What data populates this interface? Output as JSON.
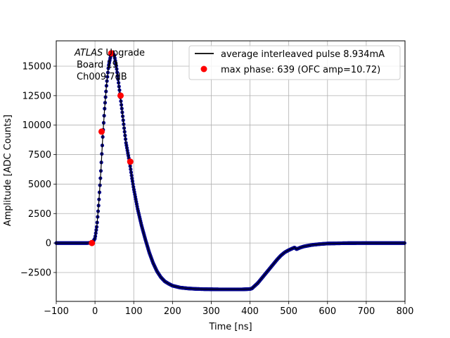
{
  "chart_data": {
    "type": "line",
    "xlabel": "Time [ns]",
    "ylabel": "Amplitude [ADC Counts]",
    "xlim": [
      -100,
      800
    ],
    "ylim": [
      -4950,
      17150
    ],
    "xticks": [
      -100,
      0,
      100,
      200,
      300,
      400,
      500,
      600,
      700,
      800
    ],
    "xtick_labels": [
      "−100",
      "0",
      "100",
      "200",
      "300",
      "400",
      "500",
      "600",
      "700",
      "800"
    ],
    "yticks": [
      -2500,
      0,
      2500,
      5000,
      7500,
      10000,
      12500,
      15000
    ],
    "ytick_labels": [
      "−2500",
      "0",
      "2500",
      "5000",
      "7500",
      "10000",
      "12500",
      "15000"
    ],
    "grid": true,
    "legend_position": "top-right",
    "annotation": {
      "line1_italic": "ATLAS",
      "line1_rest": " Upgrade",
      "line2": "Board 19",
      "line3": "Ch009 7dB"
    },
    "series": [
      {
        "name": "average interleaved pulse 8.934mA",
        "style": "line",
        "color": "#000000",
        "marker_color": "#00008b",
        "x": [
          -100,
          -20,
          -10,
          -5,
          0,
          5,
          10,
          15,
          20,
          25,
          30,
          35,
          40,
          45,
          50,
          55,
          60,
          65,
          70,
          75,
          80,
          85,
          90,
          95,
          100,
          110,
          120,
          130,
          140,
          150,
          160,
          170,
          180,
          190,
          200,
          220,
          240,
          260,
          280,
          300,
          320,
          340,
          360,
          380,
          400,
          405,
          410,
          420,
          430,
          440,
          450,
          460,
          470,
          480,
          490,
          500,
          510,
          515,
          520,
          530,
          540,
          560,
          580,
          600,
          650,
          700,
          750,
          800
        ],
        "y": [
          0,
          0,
          30,
          120,
          400,
          1500,
          3500,
          6000,
          9000,
          11500,
          13500,
          15000,
          15800,
          16200,
          15900,
          15000,
          13800,
          12500,
          11200,
          9800,
          8500,
          7600,
          6700,
          5600,
          4600,
          2900,
          1500,
          300,
          -800,
          -1700,
          -2400,
          -2900,
          -3250,
          -3450,
          -3620,
          -3780,
          -3850,
          -3890,
          -3910,
          -3920,
          -3930,
          -3930,
          -3930,
          -3930,
          -3900,
          -3850,
          -3700,
          -3400,
          -3000,
          -2600,
          -2200,
          -1800,
          -1400,
          -1050,
          -780,
          -600,
          -450,
          -380,
          -520,
          -380,
          -280,
          -160,
          -90,
          -40,
          -10,
          0,
          0,
          0
        ]
      },
      {
        "name": "max phase: 639 (OFC amp=10.72)",
        "style": "markers",
        "color": "#ff0000",
        "x": [
          -8,
          17,
          42,
          66,
          91
        ],
        "y": [
          0,
          9450,
          16100,
          12500,
          6900
        ]
      }
    ]
  }
}
